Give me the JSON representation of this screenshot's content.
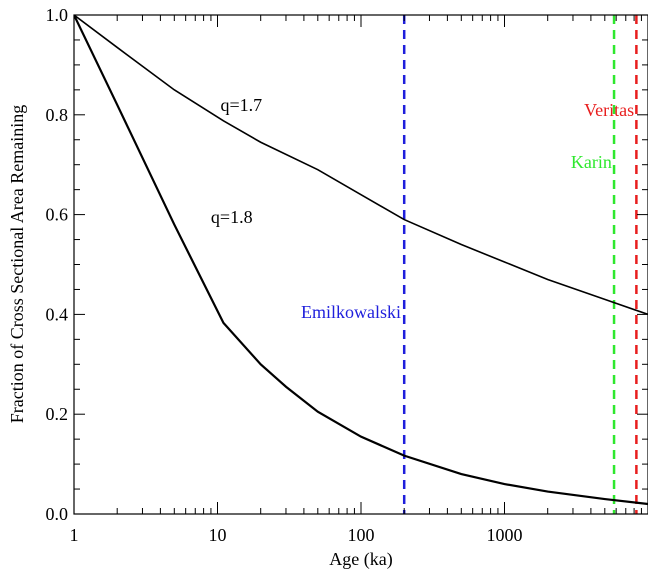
{
  "chart_data": {
    "type": "line",
    "xlabel": "Age (ka)",
    "ylabel": "Fraction of Cross Sectional Area Remaining",
    "x_scale": "log",
    "xlim": [
      1,
      10000
    ],
    "ylim": [
      0.0,
      1.0
    ],
    "x_ticks": [
      {
        "value": 1,
        "label": "1"
      },
      {
        "value": 10,
        "label": "10"
      },
      {
        "value": 100,
        "label": "100"
      },
      {
        "value": 1000,
        "label": "1000"
      }
    ],
    "y_ticks": [
      {
        "value": 0.0,
        "label": "0.0"
      },
      {
        "value": 0.2,
        "label": "0.2"
      },
      {
        "value": 0.4,
        "label": "0.4"
      },
      {
        "value": 0.6,
        "label": "0.6"
      },
      {
        "value": 0.8,
        "label": "0.8"
      },
      {
        "value": 1.0,
        "label": "1.0"
      }
    ],
    "grid": false,
    "series": [
      {
        "name": "q=1.7",
        "color": "#000000",
        "x": [
          1,
          2,
          5,
          11,
          20,
          50,
          100,
          200,
          500,
          1000,
          2000,
          5000,
          10000
        ],
        "y": [
          1.0,
          0.935,
          0.85,
          0.788,
          0.745,
          0.69,
          0.64,
          0.59,
          0.54,
          0.505,
          0.47,
          0.43,
          0.4
        ]
      },
      {
        "name": "q=1.8",
        "color": "#000000",
        "x": [
          1,
          2,
          5,
          11,
          20,
          30,
          50,
          100,
          200,
          500,
          1000,
          2000,
          5000,
          10000
        ],
        "y": [
          1.0,
          0.82,
          0.58,
          0.383,
          0.3,
          0.255,
          0.205,
          0.155,
          0.117,
          0.08,
          0.06,
          0.045,
          0.03,
          0.02
        ]
      }
    ],
    "vlines": [
      {
        "label": "Emilkowalski",
        "x": 200,
        "color": "#1f1fdc"
      },
      {
        "label": "Karin",
        "x": 5800,
        "color": "#2ee82e"
      },
      {
        "label": "Veritas",
        "x": 8300,
        "color": "#e81e1e"
      }
    ],
    "annotations": [
      {
        "text": "q=1.7",
        "x": 10.5,
        "y": 0.82,
        "color": "#000000"
      },
      {
        "text": "q=1.8",
        "x": 9.0,
        "y": 0.595,
        "color": "#000000"
      },
      {
        "text": "Emilkowalski",
        "x": 190,
        "y": 0.405,
        "color": "#1f1fdc"
      },
      {
        "text": "Karin",
        "x": 5600,
        "y": 0.705,
        "color": "#2ee82e"
      },
      {
        "text": "Veritas",
        "x": 8000,
        "y": 0.81,
        "color": "#e81e1e"
      }
    ]
  }
}
